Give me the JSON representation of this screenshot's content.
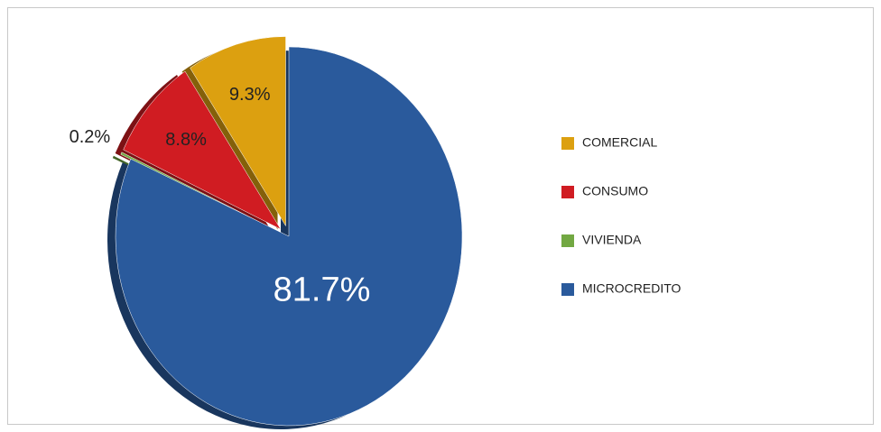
{
  "chart_data": {
    "type": "pie",
    "categories": [
      "COMERCIAL",
      "CONSUMO",
      "VIVIENDA",
      "MICROCREDITO"
    ],
    "values": [
      9.3,
      8.8,
      0.2,
      81.7
    ],
    "value_labels": [
      "9.3%",
      "8.8%",
      "0.2%",
      "81.7%"
    ],
    "colors": [
      "#dca010",
      "#d01c22",
      "#72a842",
      "#2a5a9c"
    ],
    "legend": "right"
  }
}
